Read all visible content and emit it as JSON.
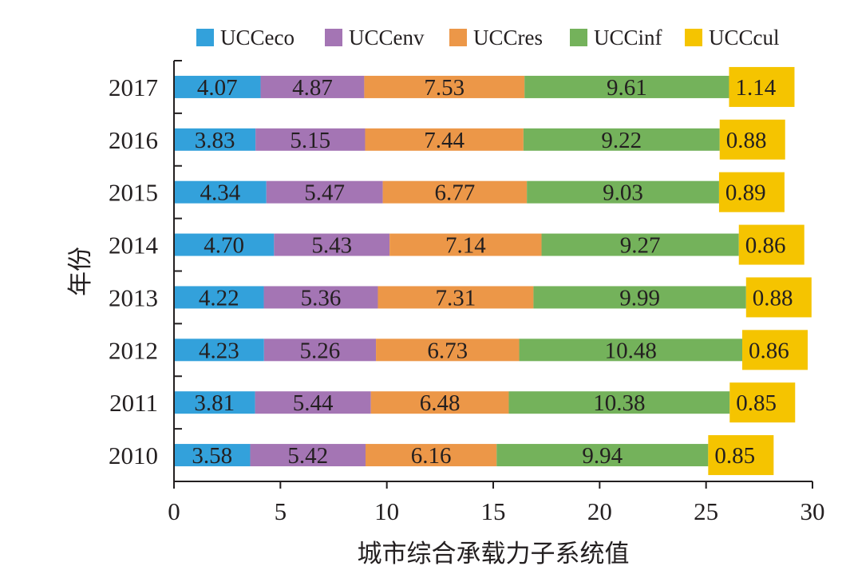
{
  "chart_data": {
    "type": "bar",
    "orientation": "horizontal",
    "stacked": true,
    "title": "",
    "xlabel": "城市综合承载力子系统值",
    "ylabel": "年份",
    "xlim": [
      0,
      30
    ],
    "xticks": [
      0,
      5,
      10,
      15,
      20,
      25,
      30
    ],
    "grid": false,
    "legend_position": "top",
    "categories": [
      "2010",
      "2011",
      "2012",
      "2013",
      "2014",
      "2015",
      "2016",
      "2017"
    ],
    "series": [
      {
        "name": "UCCeco",
        "color": "#33a1db",
        "values": [
          3.58,
          3.81,
          4.23,
          4.22,
          4.7,
          4.34,
          3.83,
          4.07
        ],
        "labels": [
          "3.58",
          "3.81",
          "4.23",
          "4.22",
          "4.70",
          "4.34",
          "3.83",
          "4.07"
        ]
      },
      {
        "name": "UCCenv",
        "color": "#a475b4",
        "values": [
          5.42,
          5.44,
          5.26,
          5.36,
          5.43,
          5.47,
          5.15,
          4.87
        ],
        "labels": [
          "5.42",
          "5.44",
          "5.26",
          "5.36",
          "5.43",
          "5.47",
          "5.15",
          "4.87"
        ]
      },
      {
        "name": "UCCres",
        "color": "#ec9748",
        "values": [
          6.16,
          6.48,
          6.73,
          7.31,
          7.14,
          6.77,
          7.44,
          7.53
        ],
        "labels": [
          "6.16",
          "6.48",
          "6.73",
          "7.31",
          "7.14",
          "6.77",
          "7.44",
          "7.53"
        ]
      },
      {
        "name": "UCCinf",
        "color": "#74b25b",
        "values": [
          9.94,
          10.38,
          10.48,
          9.99,
          9.27,
          9.03,
          9.22,
          9.61
        ],
        "labels": [
          "9.94",
          "10.38",
          "10.48",
          "9.99",
          "9.27",
          "9.03",
          "9.22",
          "9.61"
        ]
      },
      {
        "name": "UCCcul",
        "color": "#f5c400",
        "values": [
          0.85,
          0.85,
          0.86,
          0.88,
          0.86,
          0.89,
          0.88,
          1.14
        ],
        "labels": [
          "0.85",
          "0.85",
          "0.86",
          "0.88",
          "0.86",
          "0.89",
          "0.88",
          "1.14"
        ]
      }
    ]
  }
}
